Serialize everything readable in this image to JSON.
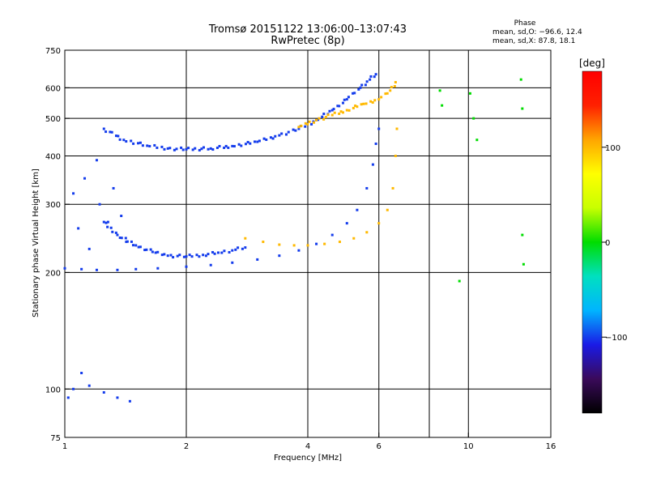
{
  "chart_data": {
    "type": "scatter",
    "title": "Tromsø 20151122 13:06:00–13:07:43",
    "subtitle": "RwPretec (8p)",
    "xlabel": "Frequency [MHz]",
    "ylabel": "Stationary phase Virtual Height [km]",
    "x_scale": "log",
    "y_scale": "log",
    "xlim": [
      1,
      16
    ],
    "ylim": [
      75,
      750
    ],
    "x_ticks": [
      1,
      2,
      4,
      6,
      10,
      16
    ],
    "x_gridlines": [
      2,
      4,
      6,
      8,
      10
    ],
    "y_ticks": [
      75,
      100,
      200,
      300,
      400,
      500,
      600,
      750
    ],
    "grid": true,
    "phase_info": {
      "title": "Phase",
      "line_o": "mean, sd,O: −96.6, 12.4",
      "line_x": "mean, sd,X:  87.8, 18.1"
    },
    "colorbar": {
      "unit": "[deg]",
      "ticks": [
        100,
        0,
        -100
      ],
      "tick_labels": [
        "100",
        "0",
        "−100"
      ],
      "range": [
        -180,
        180
      ],
      "colormap": [
        "#000000",
        "#3a0a5a",
        "#1a1ae6",
        "#00b4ff",
        "#00e0c0",
        "#00dd00",
        "#c8ff00",
        "#ffff00",
        "#ffa500",
        "#ff2000",
        "#ff0000"
      ]
    },
    "series": [
      {
        "trace": "o_lower_200_230km",
        "phase_deg": -100,
        "x": [
          1.0,
          1.1,
          1.2,
          1.35,
          1.5,
          1.7,
          2.0,
          2.3,
          2.6,
          3.0,
          3.4,
          3.8,
          4.2,
          4.6,
          5.0,
          5.3,
          5.6,
          5.8,
          5.9,
          6.0
        ],
        "y": [
          205,
          204,
          203,
          203,
          204,
          205,
          207,
          209,
          212,
          216,
          221,
          228,
          237,
          250,
          268,
          290,
          330,
          380,
          430,
          470
        ]
      },
      {
        "trace": "o_upper_390_640km",
        "phase_deg": -100,
        "x": [
          1.25,
          1.4,
          1.6,
          1.8,
          2.0,
          2.3,
          2.6,
          3.0,
          3.4,
          3.8,
          4.2,
          4.6,
          5.0,
          5.4,
          5.7,
          5.9
        ],
        "y": [
          470,
          440,
          425,
          418,
          416,
          418,
          424,
          435,
          452,
          470,
          495,
          525,
          560,
          600,
          630,
          650
        ]
      },
      {
        "trace": "o_early_215_260km",
        "phase_deg": -100,
        "x": [
          1.25,
          1.35,
          1.5,
          1.65,
          1.8,
          2.0,
          2.2,
          2.4,
          2.6,
          2.8
        ],
        "y": [
          270,
          250,
          235,
          226,
          221,
          220,
          222,
          225,
          228,
          232
        ]
      },
      {
        "trace": "x_lower_225_500km",
        "phase_deg": 100,
        "x": [
          2.8,
          3.1,
          3.4,
          3.7,
          4.0,
          4.4,
          4.8,
          5.2,
          5.6,
          6.0,
          6.3,
          6.5,
          6.6,
          6.65
        ],
        "y": [
          245,
          240,
          236,
          235,
          235,
          237,
          240,
          245,
          254,
          268,
          290,
          330,
          400,
          470
        ]
      },
      {
        "trace": "x_upper_480_620km",
        "phase_deg": 100,
        "x": [
          3.8,
          4.2,
          4.6,
          5.0,
          5.5,
          6.0,
          6.4,
          6.6
        ],
        "y": [
          475,
          495,
          510,
          525,
          545,
          560,
          590,
          620
        ]
      },
      {
        "trace": "scatter_1_1p5_MHz",
        "phase_deg": -100,
        "x": [
          1.05,
          1.08,
          1.12,
          1.15,
          1.2,
          1.22,
          1.28,
          1.32,
          1.38,
          1.42
        ],
        "y": [
          320,
          260,
          350,
          230,
          390,
          300,
          270,
          330,
          280,
          240
        ]
      },
      {
        "trace": "low_echoes_100km",
        "phase_deg": -100,
        "x": [
          1.02,
          1.05,
          1.1,
          1.15,
          1.25,
          1.35,
          1.45
        ],
        "y": [
          95,
          100,
          110,
          102,
          98,
          95,
          93
        ]
      },
      {
        "trace": "scattered_high_freq",
        "phase_deg": 0,
        "x": [
          8.5,
          8.6,
          10.1,
          10.3,
          10.5,
          13.5,
          13.6,
          13.6,
          13.7,
          9.5
        ],
        "y": [
          590,
          540,
          580,
          500,
          440,
          630,
          530,
          250,
          210,
          190
        ]
      }
    ]
  }
}
